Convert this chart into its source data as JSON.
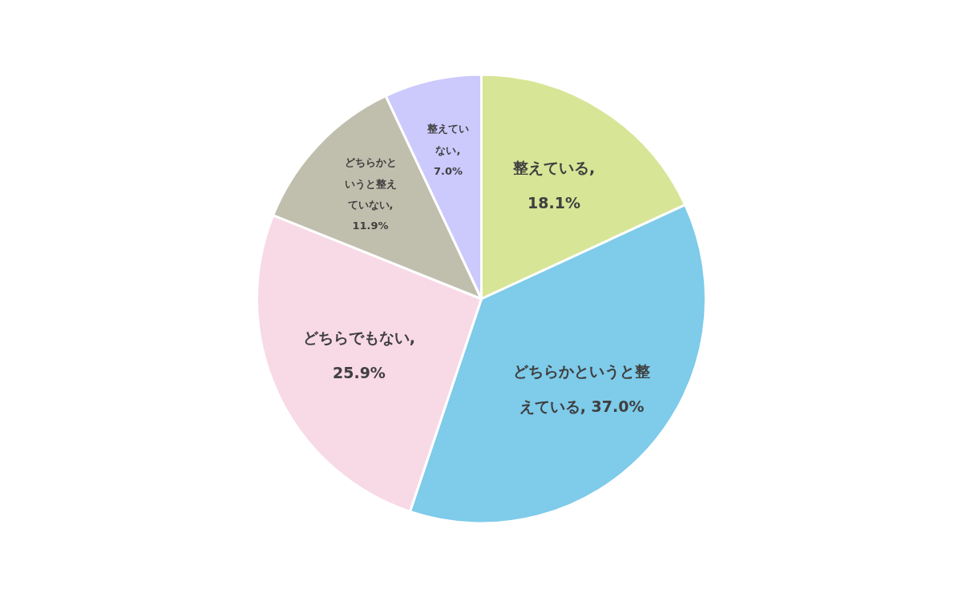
{
  "chart_data": {
    "type": "pie",
    "categories": [
      "整えている",
      "どちらかというと整えている",
      "どちらでもない",
      "どちらかというと整えていない",
      "整えていない"
    ],
    "values": [
      18.1,
      37.0,
      25.9,
      11.9,
      7.0
    ],
    "value_labels": [
      ", 18.1%",
      ", 37.0%",
      ", 25.9%",
      ", 11.9%",
      ", 7.0%"
    ],
    "colors": [
      "#d7e597",
      "#7ecbea",
      "#f8d9e6",
      "#c0bfae",
      "#ccc9fd"
    ]
  }
}
